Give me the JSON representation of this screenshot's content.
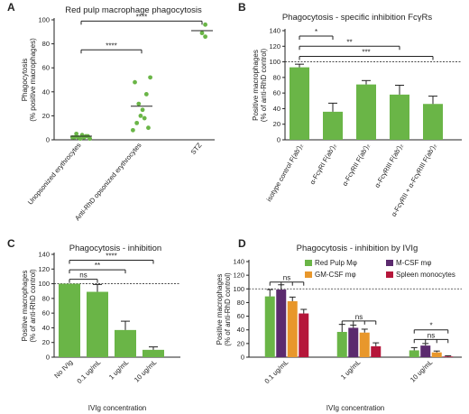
{
  "colors": {
    "green": "#6ab547",
    "purple": "#5b2a6e",
    "orange": "#e8972b",
    "red": "#b5163a"
  },
  "chart_data": [
    {
      "id": "A",
      "panel": "A",
      "type": "scatter",
      "title": "Red pulp macrophage phagocytosis",
      "ylabel": "Phagocytosis\n(% positive macrophages)",
      "ylim": [
        0,
        100
      ],
      "yticks": [
        0,
        20,
        40,
        60,
        80,
        100
      ],
      "categories": [
        "Unopsonized erythrocytes",
        "Anti-RhD opsonized erythrocytes",
        "STZ"
      ],
      "points": [
        [
          1,
          2,
          3,
          2,
          4,
          1,
          2,
          5,
          3,
          2
        ],
        [
          52,
          48,
          38,
          30,
          25,
          20,
          18,
          14,
          10,
          8
        ],
        [
          96,
          89,
          86
        ]
      ],
      "medians": [
        3,
        28,
        91
      ],
      "significance": [
        {
          "from": 0,
          "to": 1,
          "label": "****",
          "y": 75
        },
        {
          "from": 0,
          "to": 2,
          "label": "****",
          "y": 99
        }
      ],
      "grid": false
    },
    {
      "id": "B",
      "panel": "B",
      "type": "bar",
      "title": "Phagocytosis - specific inhibition FcγRs",
      "ylabel": "Positive macrophages\n(% of anti-RhD control)",
      "ylim": [
        0,
        140
      ],
      "yticks": [
        0,
        20,
        40,
        60,
        80,
        100,
        120,
        140
      ],
      "categories": [
        "isotype control F(ab')₂",
        "α-FcγRI F(ab')₂",
        "α-FcγRII F(ab')₂",
        "α-FcγRIII F(ab')₂",
        "α-FcγRII + α-FcγRIII F(ab')₂"
      ],
      "values": [
        93,
        36,
        71,
        58,
        46
      ],
      "errors": [
        4,
        11,
        5,
        12,
        10
      ],
      "reference_line": 100,
      "significance": [
        {
          "from": 0,
          "to": 1,
          "label": "*",
          "y": 133
        },
        {
          "from": 0,
          "to": 3,
          "label": "**",
          "y": 120
        },
        {
          "from": 0,
          "to": 4,
          "label": "***",
          "y": 107
        }
      ],
      "grid": false
    },
    {
      "id": "C",
      "panel": "C",
      "type": "bar",
      "title": "Phagocytosis - inhibition",
      "ylabel": "Positive macrophages\n(% of anti-RhD control)",
      "xlabel": "IVIg concentration",
      "ylim": [
        0,
        140
      ],
      "yticks": [
        0,
        20,
        40,
        60,
        80,
        100,
        120,
        140
      ],
      "categories": [
        "No IVIg",
        "0.1 ug/mL",
        "1 ug/mL",
        "10 ug/mL"
      ],
      "values": [
        100,
        89,
        37,
        10
      ],
      "errors": [
        0,
        10,
        12,
        4
      ],
      "reference_line": 100,
      "significance": [
        {
          "from": 0,
          "to": 1,
          "label": "ns",
          "y": 106
        },
        {
          "from": 0,
          "to": 2,
          "label": "**",
          "y": 119
        },
        {
          "from": 0,
          "to": 3,
          "label": "****",
          "y": 132
        }
      ],
      "grid": false
    },
    {
      "id": "D",
      "panel": "D",
      "type": "bar",
      "title": "Phagocytosis - inhibition by IVIg",
      "ylabel": "Positive macrophages\n(% of anti-RhD control)",
      "xlabel": "IVIg concentration",
      "ylim": [
        0,
        140
      ],
      "yticks": [
        0,
        20,
        40,
        60,
        80,
        100,
        120,
        140
      ],
      "categories": [
        "0.1 ug/mL",
        "1 ug/mL",
        "10 ug/mL"
      ],
      "reference_line": 100,
      "legend_position": "top-right",
      "series": [
        {
          "name": "Red Pulp Mφ",
          "color": "#6ab547",
          "values": [
            89,
            37,
            10
          ],
          "errors": [
            10,
            11,
            4
          ]
        },
        {
          "name": "M-CSF mφ",
          "color": "#5b2a6e",
          "values": [
            99,
            43,
            17
          ],
          "errors": [
            7,
            4,
            3
          ]
        },
        {
          "name": "GM-CSF mφ",
          "color": "#e8972b",
          "values": [
            82,
            36,
            7
          ],
          "errors": [
            6,
            5,
            2
          ]
        },
        {
          "name": "Spleen monocytes",
          "color": "#b5163a",
          "values": [
            64,
            16,
            1
          ],
          "errors": [
            6,
            5,
            1
          ]
        }
      ],
      "significance": [
        {
          "group": 0,
          "from": 0,
          "to": 3,
          "label": "ns",
          "y": 110,
          "brackets": [
            0,
            1,
            2,
            3
          ]
        },
        {
          "group": 1,
          "from": 0,
          "to": 3,
          "label": "ns",
          "y": 53,
          "brackets": [
            0,
            1,
            2,
            3
          ]
        },
        {
          "group": 2,
          "from": 0,
          "to": 3,
          "label": "ns",
          "y": 26,
          "brackets": [
            0,
            1,
            2,
            3
          ]
        },
        {
          "group": 2,
          "from": 0,
          "to": 3,
          "label": "*",
          "y": 40,
          "brackets": [
            0,
            3
          ]
        }
      ],
      "grid": false
    }
  ]
}
